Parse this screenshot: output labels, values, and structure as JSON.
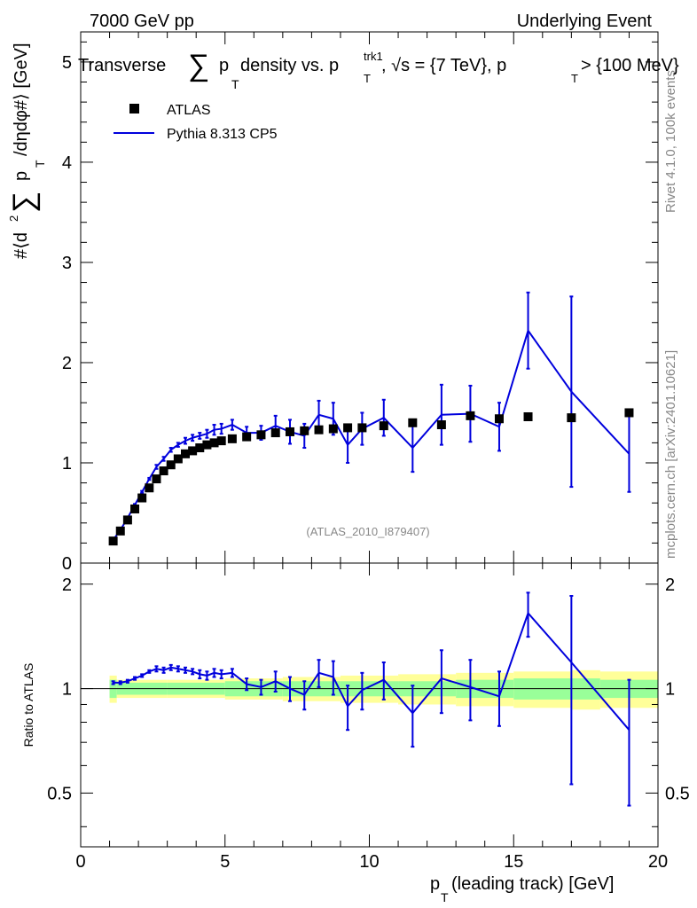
{
  "header": {
    "left": "7000 GeV pp",
    "right": "Underlying Event"
  },
  "side_text": {
    "rivet": "Rivet 4.1.0,  100k events",
    "mcplots": "mcplots.cern.ch [arXiv:2401.10621]"
  },
  "colors": {
    "mc": "#0000dd",
    "data": "#000000",
    "band_inner": "#99ff99",
    "band_outer": "#ffff99"
  },
  "chart_data": [
    {
      "type": "scatter",
      "panel": "main",
      "title_parts": {
        "t1": "Transverse",
        "t2": "p",
        "t3": "T",
        "t4": " density vs. p",
        "t5": "trk1",
        "t6": "T",
        "t7": ", √s = {7 TeV}, p",
        "t8": "T",
        "t9": " > {100 MeV}"
      },
      "ylabel_parts": {
        "a": "#⟨d",
        "b": "2",
        "c": "p",
        "d": "T",
        "e": "/dηdφ#⟩ [GeV]"
      },
      "xlim": [
        0,
        20
      ],
      "ylim": [
        0,
        5.3
      ],
      "yticks": [
        0,
        1,
        2,
        3,
        4,
        5
      ],
      "ytick_labels": [
        "0",
        "1",
        "2",
        "3",
        "4",
        "5"
      ],
      "legend": {
        "data_label": "ATLAS",
        "mc_label": "Pythia 8.313 CP5"
      },
      "watermark": "(ATLAS_2010_I879407)",
      "series": [
        {
          "name": "ATLAS",
          "style": "markers",
          "x": [
            1.125,
            1.375,
            1.625,
            1.875,
            2.125,
            2.375,
            2.625,
            2.875,
            3.125,
            3.375,
            3.625,
            3.875,
            4.125,
            4.375,
            4.625,
            4.875,
            5.25,
            5.75,
            6.25,
            6.75,
            7.25,
            7.75,
            8.25,
            8.75,
            9.25,
            9.75,
            10.5,
            11.5,
            12.5,
            13.5,
            14.5,
            15.5,
            17.0,
            19.0
          ],
          "y": [
            0.22,
            0.32,
            0.43,
            0.54,
            0.65,
            0.75,
            0.84,
            0.92,
            0.98,
            1.04,
            1.09,
            1.12,
            1.15,
            1.18,
            1.2,
            1.22,
            1.24,
            1.26,
            1.28,
            1.3,
            1.31,
            1.32,
            1.33,
            1.34,
            1.35,
            1.35,
            1.37,
            1.4,
            1.38,
            1.47,
            1.44,
            1.46,
            1.45,
            1.5
          ]
        },
        {
          "name": "Pythia 8.313 CP5",
          "style": "line",
          "x": [
            1.125,
            1.375,
            1.625,
            1.875,
            2.125,
            2.375,
            2.625,
            2.875,
            3.125,
            3.375,
            3.625,
            3.875,
            4.125,
            4.375,
            4.625,
            4.875,
            5.25,
            5.75,
            6.25,
            6.75,
            7.25,
            7.75,
            8.25,
            8.75,
            9.25,
            9.75,
            10.5,
            11.5,
            12.5,
            13.5,
            14.5,
            15.5,
            17.0,
            19.0
          ],
          "y": [
            0.23,
            0.33,
            0.45,
            0.58,
            0.71,
            0.84,
            0.96,
            1.04,
            1.13,
            1.18,
            1.22,
            1.25,
            1.27,
            1.29,
            1.33,
            1.34,
            1.38,
            1.3,
            1.3,
            1.37,
            1.31,
            1.27,
            1.48,
            1.44,
            1.18,
            1.34,
            1.45,
            1.15,
            1.48,
            1.49,
            1.36,
            2.32,
            1.71,
            1.09
          ],
          "err": [
            0.01,
            0.01,
            0.01,
            0.01,
            0.01,
            0.01,
            0.02,
            0.02,
            0.02,
            0.02,
            0.03,
            0.03,
            0.03,
            0.04,
            0.05,
            0.05,
            0.05,
            0.06,
            0.07,
            0.1,
            0.12,
            0.12,
            0.14,
            0.16,
            0.18,
            0.16,
            0.18,
            0.24,
            0.3,
            0.28,
            0.24,
            0.38,
            0.95,
            0.38
          ]
        }
      ]
    },
    {
      "type": "line",
      "panel": "ratio",
      "ylabel": "Ratio to ATLAS",
      "xlabel_parts": {
        "p": "p",
        "T": "T",
        "rest": " (leading track) [GeV]"
      },
      "xlim": [
        0,
        20
      ],
      "ylim": [
        0.35,
        2.3
      ],
      "xticks": [
        0,
        5,
        10,
        15,
        20
      ],
      "xtick_labels": [
        "0",
        "5",
        "10",
        "15",
        "20"
      ],
      "yticks": [
        0.5,
        1,
        2
      ],
      "ytick_labels": [
        "0.5",
        "1",
        "2"
      ],
      "bands": {
        "x_edges": [
          1.0,
          1.25,
          3.0,
          5.0,
          7.0,
          9.0,
          11.0,
          13.0,
          15.0,
          17.0,
          18.0,
          20.0
        ],
        "inner": [
          0.06,
          0.04,
          0.04,
          0.05,
          0.05,
          0.05,
          0.05,
          0.06,
          0.07,
          0.07,
          0.06
        ],
        "outer": [
          0.09,
          0.06,
          0.06,
          0.07,
          0.08,
          0.09,
          0.1,
          0.11,
          0.12,
          0.13,
          0.12
        ]
      },
      "series": [
        {
          "name": "Pythia 8.313 CP5 / ATLAS",
          "x": [
            1.125,
            1.375,
            1.625,
            1.875,
            2.125,
            2.375,
            2.625,
            2.875,
            3.125,
            3.375,
            3.625,
            3.875,
            4.125,
            4.375,
            4.625,
            4.875,
            5.25,
            5.75,
            6.25,
            6.75,
            7.25,
            7.75,
            8.25,
            8.75,
            9.25,
            9.75,
            10.5,
            11.5,
            12.5,
            13.5,
            14.5,
            15.5,
            17.0,
            19.0
          ],
          "y": [
            1.04,
            1.04,
            1.05,
            1.07,
            1.09,
            1.12,
            1.14,
            1.13,
            1.15,
            1.14,
            1.13,
            1.12,
            1.1,
            1.09,
            1.11,
            1.1,
            1.11,
            1.03,
            1.01,
            1.05,
            1.0,
            0.96,
            1.11,
            1.08,
            0.89,
            0.99,
            1.06,
            0.85,
            1.07,
            1.01,
            0.95,
            1.65,
            1.19,
            0.76
          ],
          "err": [
            0.01,
            0.01,
            0.01,
            0.01,
            0.01,
            0.01,
            0.02,
            0.02,
            0.02,
            0.02,
            0.02,
            0.02,
            0.03,
            0.03,
            0.03,
            0.03,
            0.03,
            0.04,
            0.05,
            0.07,
            0.08,
            0.09,
            0.1,
            0.12,
            0.13,
            0.12,
            0.13,
            0.17,
            0.22,
            0.2,
            0.17,
            0.24,
            0.66,
            0.3
          ]
        }
      ]
    }
  ]
}
